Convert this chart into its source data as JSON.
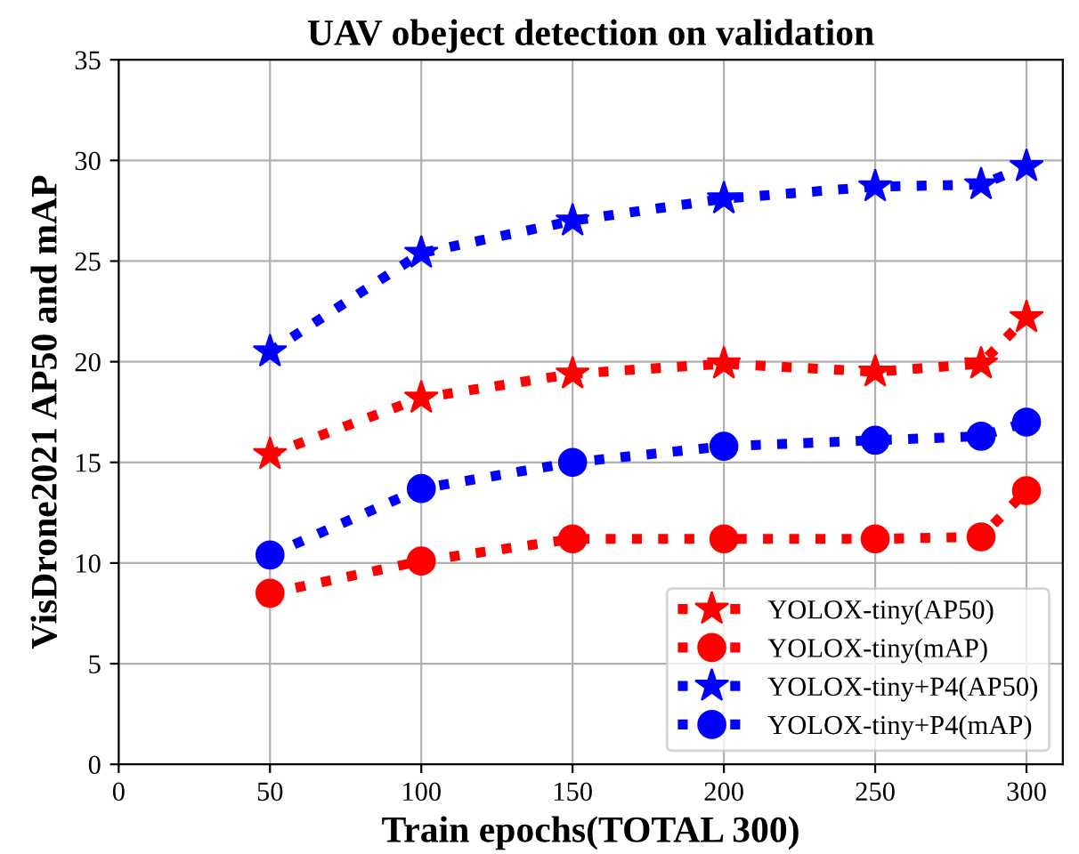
{
  "chart_data": {
    "type": "line",
    "title": "UAV obeject detection on validation",
    "xlabel": "Train epochs(TOTAL 300)",
    "ylabel": "VisDrone2021 AP50 and mAP",
    "x": [
      50,
      100,
      150,
      200,
      250,
      285,
      300
    ],
    "series": [
      {
        "name": "YOLOX-tiny(AP50)",
        "color": "#ff0000",
        "marker": "star",
        "values": [
          15.4,
          18.2,
          19.4,
          19.9,
          19.5,
          19.9,
          22.2
        ]
      },
      {
        "name": "YOLOX-tiny(mAP)",
        "color": "#ff0000",
        "marker": "circle",
        "values": [
          8.5,
          10.1,
          11.2,
          11.2,
          11.2,
          11.3,
          13.6
        ]
      },
      {
        "name": "YOLOX-tiny+P4(AP50)",
        "color": "#0000ff",
        "marker": "star",
        "values": [
          20.5,
          25.4,
          27.0,
          28.1,
          28.7,
          28.8,
          29.7
        ]
      },
      {
        "name": "YOLOX-tiny+P4(mAP)",
        "color": "#0000ff",
        "marker": "circle",
        "values": [
          10.4,
          13.7,
          15.0,
          15.8,
          16.1,
          16.3,
          17.0
        ]
      }
    ],
    "xlim": [
      0,
      312
    ],
    "xticks": [
      0,
      50,
      100,
      150,
      200,
      250,
      300
    ],
    "ylim": [
      0,
      35
    ],
    "yticks": [
      0,
      5,
      10,
      15,
      20,
      25,
      30,
      35
    ],
    "grid": true,
    "legend": "bottom right",
    "line_style": "dotted"
  }
}
